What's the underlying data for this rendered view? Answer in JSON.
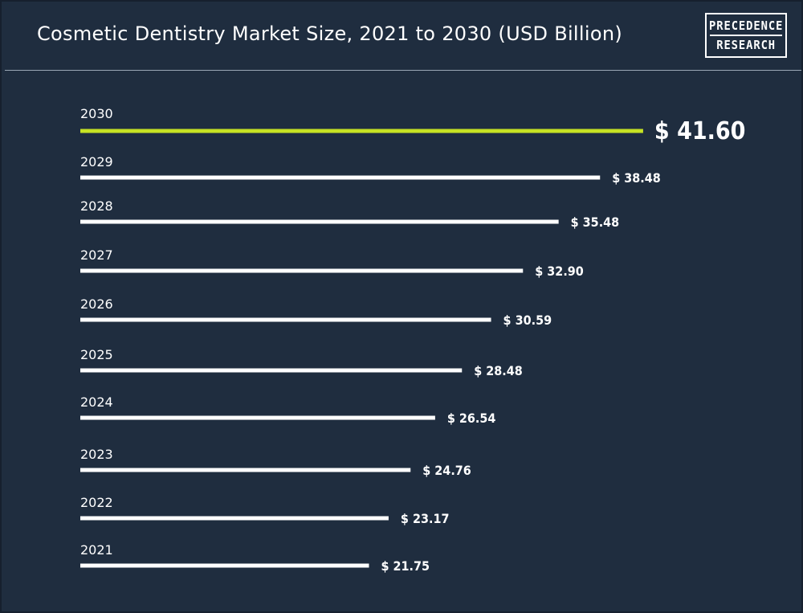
{
  "title": "Cosmetic Dentistry Market Size, 2021 to 2030 (USD Billion)",
  "logo": {
    "line1": "PRECEDENCE",
    "line2": "RESEARCH"
  },
  "colors": {
    "background": "#1f2d3f",
    "bar": "#ffffff",
    "highlight_bar": "#c6e224",
    "text": "#ffffff"
  },
  "chart_data": {
    "type": "bar",
    "orientation": "horizontal",
    "categories": [
      "2030",
      "2029",
      "2028",
      "2027",
      "2026",
      "2025",
      "2024",
      "2023",
      "2022",
      "2021"
    ],
    "values": [
      41.6,
      38.48,
      35.48,
      32.9,
      30.59,
      28.48,
      26.54,
      24.76,
      23.17,
      21.75
    ],
    "value_labels": [
      "$ 41.60",
      "$ 38.48",
      "$ 35.48",
      "$ 32.90",
      "$ 30.59",
      "$ 28.48",
      "$ 26.54",
      "$ 24.76",
      "$ 23.17",
      "$ 21.75"
    ],
    "highlight_category": "2030",
    "title": "Cosmetic Dentistry Market Size, 2021 to 2030 (USD Billion)",
    "xlabel": "",
    "ylabel": "",
    "grid": false,
    "legend": "none"
  }
}
